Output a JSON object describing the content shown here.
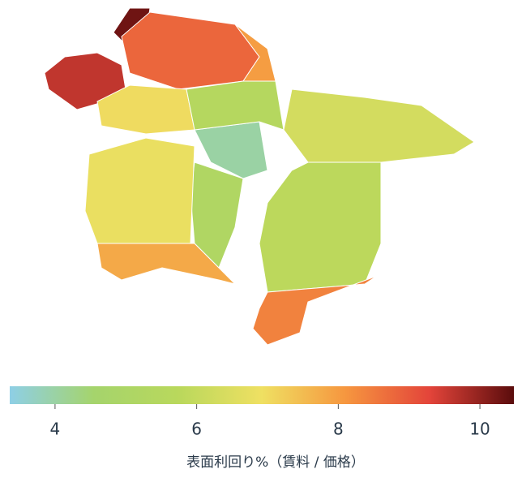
{
  "chart_data": {
    "type": "map",
    "values": [
      9.6,
      10.3,
      8.8,
      8.0,
      7.0,
      4.0,
      5.5,
      5.2,
      6.8,
      7.8,
      6.3,
      5.8,
      8.4
    ],
    "colors": [
      "#8ecfe6",
      "#a5d46c",
      "#b9d85c",
      "#efe062",
      "#f6963f",
      "#e3443a",
      "#5a0c0c"
    ],
    "colorbar_lim": [
      3.36,
      10.48
    ],
    "colorbar_ticks": [
      4,
      6,
      8,
      10
    ],
    "colorbar_label": "表面利回り%（賃料 / 価格）"
  }
}
